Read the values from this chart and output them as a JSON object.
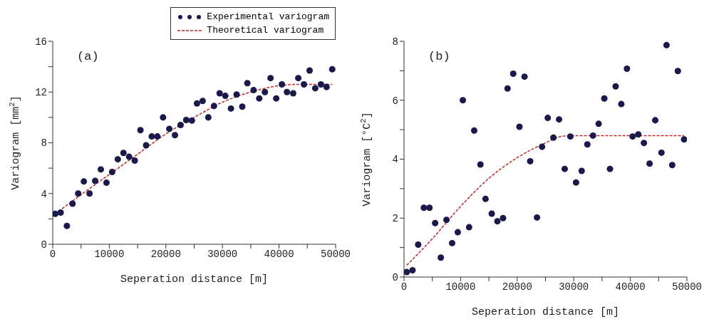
{
  "chart_data": [
    {
      "type": "scatter",
      "xlabel": "Seperation distance [m]",
      "ylabel": "Variogram [mm$^{2}$]",
      "xlim": [
        0,
        50000
      ],
      "xticks": [
        0,
        {
          "value": 5000,
          "label": null
        },
        10000,
        {
          "value": 15000,
          "label": null
        },
        20000,
        {
          "value": 25000,
          "label": null
        },
        30000,
        {
          "value": 35000,
          "label": null
        },
        40000,
        {
          "value": 45000,
          "label": null
        },
        50000
      ],
      "ylim": [
        0,
        16
      ],
      "yticks": [
        0,
        {
          "value": 2,
          "label": null
        },
        4,
        {
          "value": 6,
          "label": null
        },
        8,
        {
          "value": 10,
          "label": null
        },
        12,
        {
          "value": 14,
          "label": null
        },
        16
      ],
      "grid": false,
      "legend": "top right",
      "marker": "circle",
      "annotations": [
        "(a)"
      ],
      "series": [
        {
          "name": "Experimental variogram",
          "color": "#1a1a4a",
          "x": [
            440,
            1400,
            2500,
            3500,
            4500,
            5500,
            6500,
            7500,
            8500,
            9500,
            10500,
            11500,
            12500,
            13500,
            14500,
            15500,
            16500,
            17500,
            18500,
            19500,
            20600,
            21600,
            22600,
            23600,
            24600,
            25500,
            26500,
            27500,
            28500,
            29500,
            30500,
            31500,
            32500,
            33500,
            34400,
            35500,
            36500,
            37500,
            38500,
            39500,
            40500,
            41400,
            42500,
            43400,
            44400,
            45400,
            46400,
            47400,
            48400,
            49400
          ],
          "values": [
            2.4,
            2.5,
            1.45,
            3.2,
            4.0,
            4.95,
            4.0,
            5.0,
            5.9,
            4.85,
            5.7,
            6.7,
            7.2,
            6.9,
            6.6,
            9.0,
            7.8,
            8.5,
            8.5,
            10.0,
            9.1,
            8.6,
            9.4,
            9.8,
            9.75,
            11.1,
            11.3,
            10.0,
            10.9,
            11.9,
            11.7,
            10.7,
            11.8,
            10.85,
            12.7,
            12.15,
            11.5,
            12.0,
            13.1,
            11.5,
            12.6,
            12.0,
            11.9,
            13.1,
            12.6,
            13.7,
            12.3,
            12.6,
            12.4,
            13.8
          ]
        },
        {
          "name": "Theoretical variogram",
          "type": "line",
          "marker": "none",
          "color": "#c0282d",
          "line_style": "dashed",
          "x": [
            440,
            5000,
            10000,
            15000,
            20000,
            25000,
            30000,
            35000,
            40000,
            43000,
            46000,
            49400
          ],
          "values": [
            2.4,
            3.9,
            5.5,
            7.1,
            8.7,
            10.0,
            11.2,
            12.0,
            12.5,
            12.6,
            12.6,
            12.6
          ]
        }
      ]
    },
    {
      "type": "scatter",
      "xlabel": "Seperation distance [m]",
      "ylabel": "Variogram [°C$^{2}$]",
      "xlim": [
        0,
        50000
      ],
      "xticks": [
        0,
        {
          "value": 5000,
          "label": null
        },
        10000,
        {
          "value": 15000,
          "label": null
        },
        20000,
        {
          "value": 25000,
          "label": null
        },
        30000,
        {
          "value": 35000,
          "label": null
        },
        40000,
        {
          "value": 45000,
          "label": null
        },
        50000
      ],
      "ylim": [
        0,
        8
      ],
      "yticks": [
        0,
        {
          "value": 1,
          "label": null
        },
        2,
        {
          "value": 3,
          "label": null
        },
        4,
        {
          "value": 5,
          "label": null
        },
        6,
        {
          "value": 7,
          "label": null
        },
        8
      ],
      "grid": false,
      "marker": "circle",
      "annotations": [
        "(b)"
      ],
      "series": [
        {
          "color": "#1a1a4a",
          "x": [
            480,
            1500,
            2500,
            3500,
            4500,
            5500,
            6500,
            7500,
            8500,
            9500,
            10400,
            11500,
            12400,
            13500,
            14400,
            15500,
            16500,
            17500,
            18300,
            19300,
            20400,
            21300,
            22300,
            23500,
            24400,
            25400,
            26400,
            27400,
            28400,
            29400,
            30400,
            31400,
            32400,
            33400,
            34400,
            35400,
            36400,
            37400,
            38400,
            39400,
            40400,
            41400,
            42400,
            43400,
            44400,
            45500,
            46400,
            47400,
            48400,
            49500
          ],
          "values": [
            0.17,
            0.23,
            1.1,
            2.35,
            2.35,
            1.83,
            0.66,
            1.94,
            1.15,
            1.52,
            6.0,
            1.69,
            4.97,
            3.82,
            2.65,
            2.15,
            1.89,
            2.0,
            6.4,
            6.9,
            5.1,
            6.8,
            3.93,
            2.02,
            4.42,
            5.4,
            4.73,
            5.35,
            3.67,
            4.77,
            3.21,
            3.6,
            4.5,
            4.8,
            5.2,
            6.06,
            3.67,
            6.47,
            5.87,
            7.07,
            4.77,
            4.84,
            4.55,
            3.85,
            5.32,
            4.22,
            7.87,
            3.8,
            6.99,
            4.67
          ]
        },
        {
          "type": "line",
          "marker": "none",
          "color": "#c0282d",
          "line_style": "dashed",
          "x": [
            480,
            5000,
            10000,
            15000,
            20000,
            25000,
            28000,
            30000,
            40000,
            49500
          ],
          "values": [
            0.4,
            1.3,
            2.4,
            3.35,
            4.05,
            4.55,
            4.78,
            4.8,
            4.8,
            4.8
          ]
        }
      ]
    }
  ]
}
